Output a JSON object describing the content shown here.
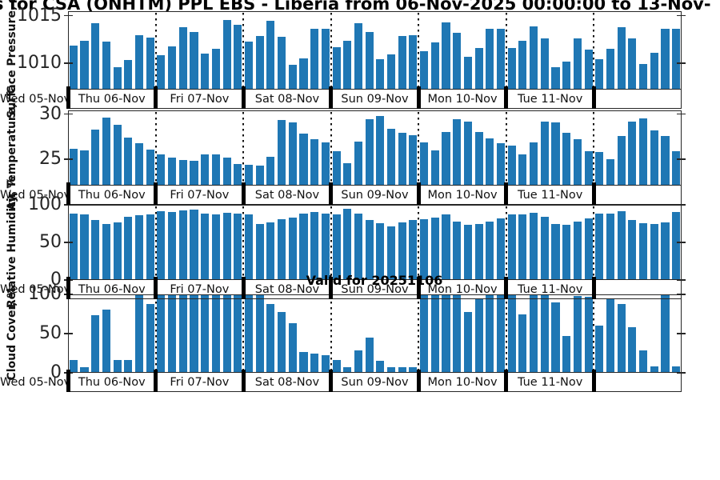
{
  "title": "s for CSA (ONHTM) PPL EBS  - Liberia from 06-Nov-2025 00:00:00 to 13-Nov-",
  "valid_label": "Valid for 20251106",
  "bar_color": "#1f77b4",
  "x_axis": {
    "left_label": "Wed 05-Nov",
    "day_labels": [
      "Thu 06-Nov",
      "Fri 07-Nov",
      "Sat 08-Nov",
      "Sun 09-Nov",
      "Mon 10-Nov",
      "Tue 11-Nov"
    ],
    "bars_per_day": 8,
    "num_days": 7
  },
  "chart_data": [
    {
      "type": "bar",
      "id": "surface-pressure",
      "ylabel": "Surface Pressure, mb",
      "ylim": [
        1007.2,
        1015.5
      ],
      "yticks": [
        {
          "v": 1015,
          "label": "1015"
        },
        {
          "v": 1010,
          "label": "1010"
        }
      ],
      "grid": "vertical-dotted-day-boundaries",
      "values": [
        1011.9,
        1012.4,
        1014.2,
        1012.3,
        1009.6,
        1010.3,
        1013.0,
        1012.7,
        1010.8,
        1011.8,
        1013.8,
        1013.3,
        1011.0,
        1011.5,
        1014.6,
        1014.1,
        1012.3,
        1012.9,
        1014.5,
        1012.8,
        1009.8,
        1010.5,
        1013.6,
        1013.6,
        1011.7,
        1012.4,
        1014.2,
        1013.3,
        1010.4,
        1010.9,
        1012.9,
        1013.0,
        1011.3,
        1012.2,
        1014.3,
        1013.2,
        1010.7,
        1011.6,
        1013.6,
        1013.6,
        1011.6,
        1012.4,
        1013.9,
        1012.6,
        1009.6,
        1010.2,
        1012.6,
        1011.4,
        1010.4,
        1011.5,
        1013.8,
        1012.6,
        1009.9,
        1011.1,
        1013.6,
        1013.6
      ]
    },
    {
      "type": "bar",
      "id": "air-temperature",
      "ylabel": "Air Temperature, °C",
      "ylim": [
        22.1,
        30.4
      ],
      "yticks": [
        {
          "v": 30,
          "label": "30"
        },
        {
          "v": 25,
          "label": "25"
        }
      ],
      "grid": "vertical-dotted-day-boundaries",
      "values": [
        26.2,
        26.0,
        28.3,
        29.6,
        28.8,
        27.4,
        26.8,
        26.1,
        25.5,
        25.2,
        24.9,
        24.8,
        25.5,
        25.5,
        25.2,
        24.5,
        24.4,
        24.3,
        25.3,
        29.3,
        29.1,
        27.8,
        27.2,
        26.9,
        25.9,
        24.6,
        27.0,
        29.4,
        29.8,
        28.4,
        27.9,
        27.7,
        26.9,
        26.0,
        28.0,
        29.4,
        29.2,
        28.0,
        27.3,
        26.8,
        26.5,
        25.5,
        26.9,
        29.2,
        29.1,
        27.9,
        27.2,
        25.9,
        25.8,
        25.0,
        27.6,
        29.2,
        29.5,
        28.2,
        27.6,
        25.9
      ]
    },
    {
      "type": "bar",
      "id": "relative-humidity",
      "ylabel": "Relative Humidity, %",
      "ylim": [
        0,
        100
      ],
      "yticks": [
        {
          "v": 100,
          "label": "100"
        },
        {
          "v": 50,
          "label": "50"
        },
        {
          "v": 0,
          "label": "0"
        }
      ],
      "grid": "vertical-dotted-day-boundaries",
      "values": [
        88,
        87,
        80,
        74,
        77,
        84,
        86,
        87,
        91,
        90,
        93,
        94,
        88,
        87,
        89,
        88,
        87,
        74,
        77,
        81,
        83,
        88,
        90,
        88,
        87,
        95,
        88,
        80,
        76,
        71,
        77,
        80,
        81,
        83,
        87,
        78,
        73,
        74,
        78,
        82,
        87,
        87,
        89,
        84,
        74,
        73,
        78,
        82,
        88,
        88,
        91,
        80,
        76,
        74,
        77,
        90
      ]
    },
    {
      "type": "bar",
      "id": "cloud-cover",
      "ylabel": "Cloud Cover, %",
      "ylim": [
        0,
        100
      ],
      "yticks": [
        {
          "v": 100,
          "label": "100"
        },
        {
          "v": 50,
          "label": "50"
        },
        {
          "v": 0,
          "label": "0"
        }
      ],
      "grid": "vertical-dotted-day-boundaries",
      "values": [
        16,
        7,
        73,
        81,
        16,
        16,
        100,
        88,
        100,
        100,
        100,
        100,
        100,
        100,
        100,
        100,
        100,
        100,
        88,
        78,
        63,
        27,
        24,
        22,
        16,
        7,
        29,
        45,
        15,
        7,
        7,
        7,
        100,
        100,
        100,
        100,
        78,
        94,
        100,
        100,
        100,
        75,
        100,
        100,
        90,
        47,
        98,
        97,
        60,
        95,
        88,
        58,
        29,
        8,
        100,
        8
      ]
    }
  ]
}
